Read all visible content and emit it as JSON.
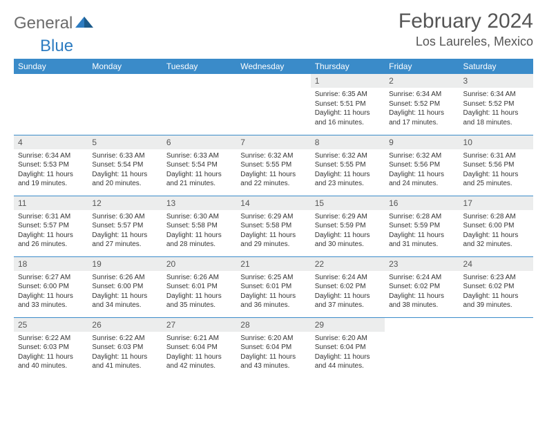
{
  "logo": {
    "part1": "General",
    "part2": "Blue"
  },
  "title": "February 2024",
  "location": "Los Laureles, Mexico",
  "header_bg": "#3a8bc9",
  "day_header_bg": "#eceded",
  "weekdays": [
    "Sunday",
    "Monday",
    "Tuesday",
    "Wednesday",
    "Thursday",
    "Friday",
    "Saturday"
  ],
  "weeks": [
    [
      null,
      null,
      null,
      null,
      {
        "n": "1",
        "sunrise": "6:35 AM",
        "sunset": "5:51 PM",
        "dl": "11 hours and 16 minutes."
      },
      {
        "n": "2",
        "sunrise": "6:34 AM",
        "sunset": "5:52 PM",
        "dl": "11 hours and 17 minutes."
      },
      {
        "n": "3",
        "sunrise": "6:34 AM",
        "sunset": "5:52 PM",
        "dl": "11 hours and 18 minutes."
      }
    ],
    [
      {
        "n": "4",
        "sunrise": "6:34 AM",
        "sunset": "5:53 PM",
        "dl": "11 hours and 19 minutes."
      },
      {
        "n": "5",
        "sunrise": "6:33 AM",
        "sunset": "5:54 PM",
        "dl": "11 hours and 20 minutes."
      },
      {
        "n": "6",
        "sunrise": "6:33 AM",
        "sunset": "5:54 PM",
        "dl": "11 hours and 21 minutes."
      },
      {
        "n": "7",
        "sunrise": "6:32 AM",
        "sunset": "5:55 PM",
        "dl": "11 hours and 22 minutes."
      },
      {
        "n": "8",
        "sunrise": "6:32 AM",
        "sunset": "5:55 PM",
        "dl": "11 hours and 23 minutes."
      },
      {
        "n": "9",
        "sunrise": "6:32 AM",
        "sunset": "5:56 PM",
        "dl": "11 hours and 24 minutes."
      },
      {
        "n": "10",
        "sunrise": "6:31 AM",
        "sunset": "5:56 PM",
        "dl": "11 hours and 25 minutes."
      }
    ],
    [
      {
        "n": "11",
        "sunrise": "6:31 AM",
        "sunset": "5:57 PM",
        "dl": "11 hours and 26 minutes."
      },
      {
        "n": "12",
        "sunrise": "6:30 AM",
        "sunset": "5:57 PM",
        "dl": "11 hours and 27 minutes."
      },
      {
        "n": "13",
        "sunrise": "6:30 AM",
        "sunset": "5:58 PM",
        "dl": "11 hours and 28 minutes."
      },
      {
        "n": "14",
        "sunrise": "6:29 AM",
        "sunset": "5:58 PM",
        "dl": "11 hours and 29 minutes."
      },
      {
        "n": "15",
        "sunrise": "6:29 AM",
        "sunset": "5:59 PM",
        "dl": "11 hours and 30 minutes."
      },
      {
        "n": "16",
        "sunrise": "6:28 AM",
        "sunset": "5:59 PM",
        "dl": "11 hours and 31 minutes."
      },
      {
        "n": "17",
        "sunrise": "6:28 AM",
        "sunset": "6:00 PM",
        "dl": "11 hours and 32 minutes."
      }
    ],
    [
      {
        "n": "18",
        "sunrise": "6:27 AM",
        "sunset": "6:00 PM",
        "dl": "11 hours and 33 minutes."
      },
      {
        "n": "19",
        "sunrise": "6:26 AM",
        "sunset": "6:00 PM",
        "dl": "11 hours and 34 minutes."
      },
      {
        "n": "20",
        "sunrise": "6:26 AM",
        "sunset": "6:01 PM",
        "dl": "11 hours and 35 minutes."
      },
      {
        "n": "21",
        "sunrise": "6:25 AM",
        "sunset": "6:01 PM",
        "dl": "11 hours and 36 minutes."
      },
      {
        "n": "22",
        "sunrise": "6:24 AM",
        "sunset": "6:02 PM",
        "dl": "11 hours and 37 minutes."
      },
      {
        "n": "23",
        "sunrise": "6:24 AM",
        "sunset": "6:02 PM",
        "dl": "11 hours and 38 minutes."
      },
      {
        "n": "24",
        "sunrise": "6:23 AM",
        "sunset": "6:02 PM",
        "dl": "11 hours and 39 minutes."
      }
    ],
    [
      {
        "n": "25",
        "sunrise": "6:22 AM",
        "sunset": "6:03 PM",
        "dl": "11 hours and 40 minutes."
      },
      {
        "n": "26",
        "sunrise": "6:22 AM",
        "sunset": "6:03 PM",
        "dl": "11 hours and 41 minutes."
      },
      {
        "n": "27",
        "sunrise": "6:21 AM",
        "sunset": "6:04 PM",
        "dl": "11 hours and 42 minutes."
      },
      {
        "n": "28",
        "sunrise": "6:20 AM",
        "sunset": "6:04 PM",
        "dl": "11 hours and 43 minutes."
      },
      {
        "n": "29",
        "sunrise": "6:20 AM",
        "sunset": "6:04 PM",
        "dl": "11 hours and 44 minutes."
      },
      null,
      null
    ]
  ],
  "labels": {
    "sunrise": "Sunrise:",
    "sunset": "Sunset:",
    "daylight": "Daylight:"
  }
}
